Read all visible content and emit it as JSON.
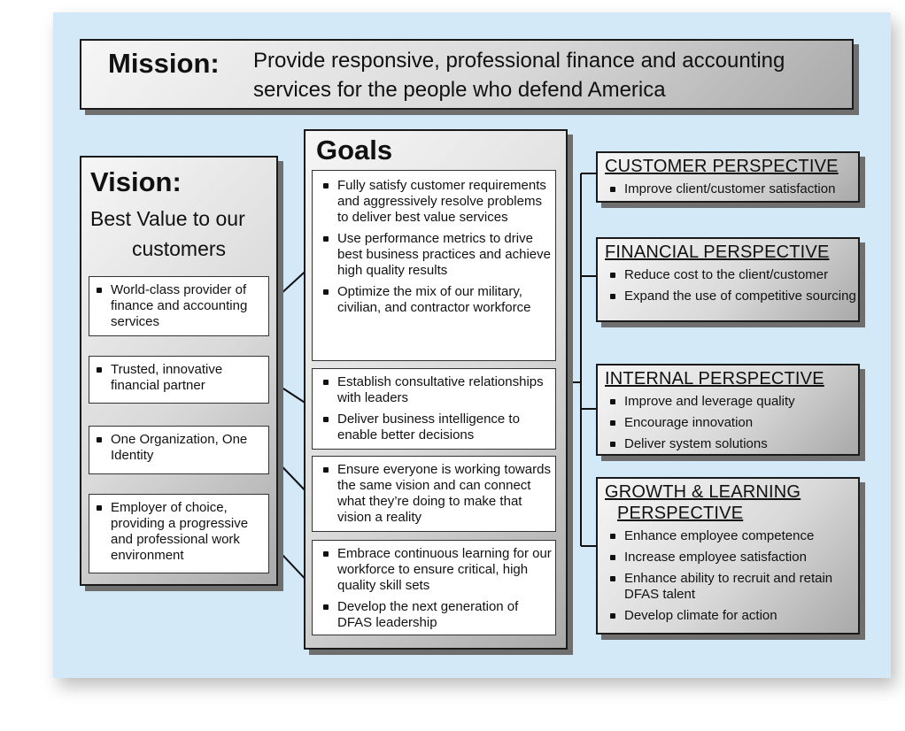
{
  "mission": {
    "label": "Mission:",
    "text_line1": "Provide responsive, professional finance and accounting",
    "text_line2": "services for the people who defend America"
  },
  "vision": {
    "label": "Vision:",
    "subtitle_line1": "Best Value to our",
    "subtitle_line2": "customers",
    "items": [
      "World-class provider of finance and accounting services",
      "Trusted, innovative financial partner",
      "One Organization, One Identity",
      "Employer of choice, providing a progressive and professional work environment"
    ]
  },
  "goals": {
    "title": "Goals",
    "groups": [
      [
        "Fully satisfy customer requirements and aggressively resolve problems to deliver best value services",
        "Use performance metrics to drive best business practices and achieve high quality results",
        "Optimize the mix of our military, civilian, and contractor workforce"
      ],
      [
        "Establish consultative relationships with leaders",
        "Deliver business intelligence to enable better decisions"
      ],
      [
        "Ensure everyone is working towards the same vision and can connect what they’re doing to make that vision a reality"
      ],
      [
        "Embrace continuous learning for our workforce to ensure critical, high quality skill sets",
        "Develop the next generation of DFAS leadership"
      ]
    ]
  },
  "perspectives": [
    {
      "title": "CUSTOMER PERSPECTIVE",
      "items": [
        "Improve client/customer satisfaction"
      ]
    },
    {
      "title": "FINANCIAL PERSPECTIVE",
      "items": [
        "Reduce cost to the client/customer",
        "Expand the use of competitive sourcing"
      ]
    },
    {
      "title": "INTERNAL PERSPECTIVE",
      "items": [
        "Improve and leverage quality",
        "Encourage innovation",
        "Deliver system solutions"
      ]
    },
    {
      "title_line1": "GROWTH & LEARNING",
      "title_line2": "PERSPECTIVE",
      "items": [
        "Enhance employee competence",
        "Increase employee satisfaction",
        "Enhance ability to recruit and retain DFAS talent",
        "Develop climate for action"
      ]
    }
  ]
}
